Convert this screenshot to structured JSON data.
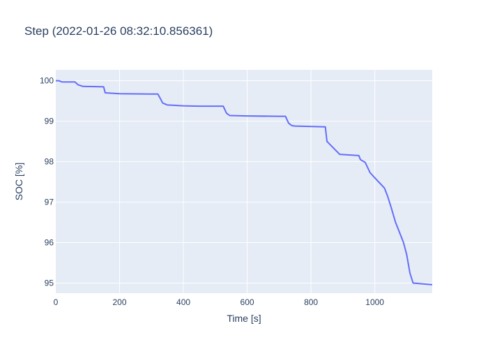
{
  "chart_data": {
    "type": "line",
    "title": "Step  (2022-01-26 08:32:10.856361)",
    "xlabel": "Time [s]",
    "ylabel": "SOC [%]",
    "xlim": [
      0,
      1180
    ],
    "ylim": [
      94.75,
      100.27
    ],
    "x_ticks": [
      0,
      200,
      400,
      600,
      800,
      1000
    ],
    "y_ticks": [
      95,
      96,
      97,
      98,
      99,
      100
    ],
    "grid": true,
    "series": [
      {
        "color": "#636efa",
        "x": [
          0,
          10,
          20,
          60,
          70,
          85,
          150,
          155,
          200,
          300,
          320,
          325,
          335,
          350,
          400,
          450,
          525,
          535,
          545,
          600,
          700,
          720,
          730,
          740,
          750,
          845,
          850,
          890,
          950,
          955,
          970,
          985,
          1000,
          1030,
          1040,
          1050,
          1065,
          1090,
          1100,
          1110,
          1120,
          1180
        ],
        "y": [
          100.0,
          100.0,
          99.97,
          99.97,
          99.9,
          99.86,
          99.85,
          99.7,
          99.68,
          99.67,
          99.67,
          99.6,
          99.45,
          99.4,
          99.38,
          99.37,
          99.37,
          99.2,
          99.14,
          99.13,
          99.12,
          99.12,
          98.95,
          98.89,
          98.88,
          98.86,
          98.5,
          98.18,
          98.15,
          98.05,
          97.98,
          97.73,
          97.6,
          97.35,
          97.15,
          96.9,
          96.5,
          96.0,
          95.7,
          95.25,
          95.0,
          94.96
        ]
      }
    ]
  }
}
